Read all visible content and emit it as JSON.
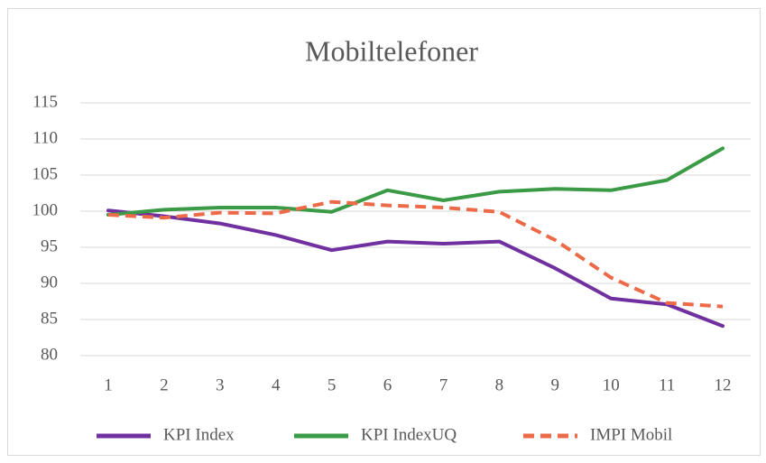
{
  "chart_data": {
    "type": "line",
    "title": "Mobiltelefoner",
    "categories": [
      1,
      2,
      3,
      4,
      5,
      6,
      7,
      8,
      9,
      10,
      11,
      12
    ],
    "series": [
      {
        "name": "KPI Index",
        "color": "#7030a0",
        "dash": false,
        "values": [
          100.1,
          99.3,
          98.3,
          96.7,
          94.6,
          95.8,
          95.5,
          95.8,
          92.1,
          87.9,
          87.1,
          84.1
        ]
      },
      {
        "name": "KPI IndexUQ",
        "color": "#3a9a45",
        "dash": false,
        "values": [
          99.5,
          100.2,
          100.5,
          100.5,
          99.9,
          102.9,
          101.5,
          102.7,
          103.1,
          102.9,
          104.3,
          108.7
        ]
      },
      {
        "name": "IMPI Mobil",
        "color": "#ed6a48",
        "dash": true,
        "values": [
          99.5,
          99.1,
          99.8,
          99.7,
          101.3,
          100.8,
          100.5,
          99.9,
          96.0,
          90.8,
          87.3,
          86.8
        ]
      }
    ],
    "ylim": [
      80,
      115
    ],
    "yticks": [
      80,
      85,
      90,
      95,
      100,
      105,
      110,
      115
    ],
    "grid": true,
    "legend": "bottom"
  }
}
